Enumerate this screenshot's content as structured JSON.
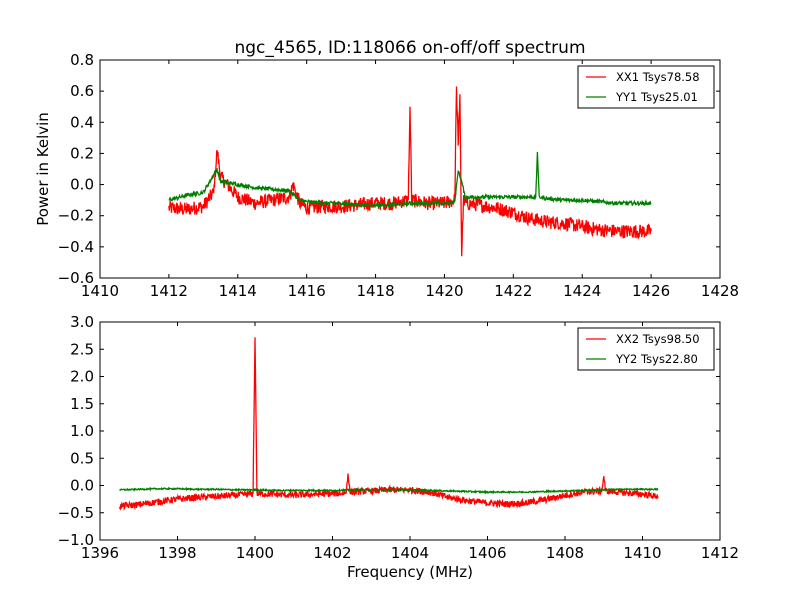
{
  "figure": {
    "title": "ngc_4565, ID:118066 on-off/off spectrum",
    "xlabel": "Frequency (MHz)"
  },
  "chart_data": [
    {
      "type": "line",
      "title": "ngc_4565, ID:118066 on-off/off spectrum",
      "xlabel": "",
      "ylabel": "Power in Kelvin",
      "xlim": [
        1410,
        1428
      ],
      "ylim": [
        -0.6,
        0.8
      ],
      "xticks": [
        1410,
        1412,
        1414,
        1416,
        1418,
        1420,
        1422,
        1424,
        1426,
        1428
      ],
      "yticks": [
        -0.6,
        -0.4,
        -0.2,
        0.0,
        0.2,
        0.4,
        0.6,
        0.8
      ],
      "xtick_labels": [
        "1410",
        "1412",
        "1414",
        "1416",
        "1418",
        "1420",
        "1422",
        "1424",
        "1426",
        "1428"
      ],
      "ytick_labels": [
        "−0.6",
        "−0.4",
        "−0.2",
        "0.0",
        "0.2",
        "0.4",
        "0.6",
        "0.8"
      ],
      "grid": false,
      "legend_position": "top-right",
      "series": [
        {
          "name": "XX1 Tsys78.58",
          "color": "#ff0000",
          "x": [
            1412.0,
            1412.5,
            1413.0,
            1413.3,
            1413.4,
            1413.5,
            1414.0,
            1414.5,
            1415.0,
            1415.5,
            1415.6,
            1415.8,
            1416.0,
            1416.5,
            1417.0,
            1417.5,
            1418.0,
            1418.5,
            1418.95,
            1419.0,
            1419.05,
            1419.5,
            1420.0,
            1420.3,
            1420.35,
            1420.4,
            1420.45,
            1420.5,
            1420.55,
            1420.6,
            1421.0,
            1421.5,
            1422.0,
            1422.5,
            1423.0,
            1423.5,
            1424.0,
            1424.5,
            1425.0,
            1425.5,
            1426.0
          ],
          "y": [
            -0.15,
            -0.16,
            -0.14,
            -0.05,
            0.22,
            0.05,
            -0.08,
            -0.12,
            -0.1,
            -0.08,
            0.0,
            -0.12,
            -0.15,
            -0.14,
            -0.14,
            -0.13,
            -0.12,
            -0.12,
            -0.1,
            0.5,
            -0.1,
            -0.12,
            -0.12,
            -0.1,
            0.63,
            0.25,
            0.58,
            -0.46,
            -0.1,
            -0.12,
            -0.13,
            -0.15,
            -0.18,
            -0.22,
            -0.24,
            -0.25,
            -0.27,
            -0.29,
            -0.3,
            -0.3,
            -0.3
          ]
        },
        {
          "name": "YY1 Tsys25.01",
          "color": "#008000",
          "x": [
            1412.0,
            1412.5,
            1413.0,
            1413.4,
            1413.5,
            1414.0,
            1414.5,
            1415.0,
            1415.5,
            1415.8,
            1416.0,
            1416.5,
            1417.0,
            1417.5,
            1418.0,
            1418.5,
            1419.0,
            1419.5,
            1420.0,
            1420.3,
            1420.4,
            1420.5,
            1420.6,
            1421.0,
            1421.5,
            1422.0,
            1422.5,
            1422.65,
            1422.7,
            1422.75,
            1423.0,
            1423.5,
            1424.0,
            1424.5,
            1425.0,
            1425.5,
            1426.0
          ],
          "y": [
            -0.1,
            -0.07,
            -0.05,
            0.1,
            0.02,
            0.0,
            -0.02,
            -0.03,
            -0.04,
            -0.1,
            -0.11,
            -0.12,
            -0.12,
            -0.13,
            -0.13,
            -0.13,
            -0.12,
            -0.12,
            -0.12,
            -0.11,
            0.09,
            0.02,
            -0.08,
            -0.08,
            -0.08,
            -0.08,
            -0.08,
            -0.08,
            0.21,
            -0.08,
            -0.09,
            -0.1,
            -0.1,
            -0.11,
            -0.12,
            -0.12,
            -0.12
          ]
        }
      ]
    },
    {
      "type": "line",
      "title": "",
      "xlabel": "Frequency (MHz)",
      "ylabel": "",
      "xlim": [
        1396,
        1412
      ],
      "ylim": [
        -1.0,
        3.0
      ],
      "xticks": [
        1396,
        1398,
        1400,
        1402,
        1404,
        1406,
        1408,
        1410,
        1412
      ],
      "yticks": [
        -1.0,
        -0.5,
        0.0,
        0.5,
        1.0,
        1.5,
        2.0,
        2.5,
        3.0
      ],
      "xtick_labels": [
        "1396",
        "1398",
        "1400",
        "1402",
        "1404",
        "1406",
        "1408",
        "1410",
        "1412"
      ],
      "ytick_labels": [
        "−1.0",
        "−0.5",
        "0.0",
        "0.5",
        "1.0",
        "1.5",
        "2.0",
        "2.5",
        "3.0"
      ],
      "grid": false,
      "legend_position": "top-right",
      "series": [
        {
          "name": "XX2 Tsys98.50",
          "color": "#ff0000",
          "x": [
            1396.5,
            1397.0,
            1397.5,
            1398.0,
            1398.5,
            1399.0,
            1399.5,
            1399.95,
            1400.0,
            1400.05,
            1400.5,
            1401.0,
            1401.5,
            1402.0,
            1402.35,
            1402.4,
            1402.45,
            1403.0,
            1403.5,
            1404.0,
            1404.5,
            1405.0,
            1405.5,
            1406.0,
            1406.5,
            1407.0,
            1407.5,
            1408.0,
            1408.5,
            1408.95,
            1409.0,
            1409.05,
            1409.5,
            1410.0,
            1410.4
          ],
          "y": [
            -0.38,
            -0.35,
            -0.3,
            -0.25,
            -0.22,
            -0.2,
            -0.18,
            -0.15,
            2.72,
            -0.15,
            -0.16,
            -0.18,
            -0.16,
            -0.15,
            -0.14,
            0.22,
            -0.12,
            -0.1,
            -0.08,
            -0.08,
            -0.12,
            -0.22,
            -0.28,
            -0.32,
            -0.34,
            -0.32,
            -0.26,
            -0.18,
            -0.12,
            -0.1,
            0.17,
            -0.1,
            -0.13,
            -0.16,
            -0.2
          ]
        },
        {
          "name": "YY2 Tsys22.80",
          "color": "#008000",
          "x": [
            1396.5,
            1397.0,
            1397.5,
            1398.0,
            1398.5,
            1399.0,
            1399.5,
            1400.0,
            1400.5,
            1401.0,
            1401.5,
            1402.0,
            1402.5,
            1403.0,
            1403.5,
            1404.0,
            1404.5,
            1405.0,
            1405.5,
            1406.0,
            1406.5,
            1407.0,
            1407.5,
            1408.0,
            1408.5,
            1409.0,
            1409.5,
            1410.0,
            1410.4
          ],
          "y": [
            -0.08,
            -0.07,
            -0.06,
            -0.06,
            -0.07,
            -0.07,
            -0.08,
            -0.08,
            -0.09,
            -0.09,
            -0.09,
            -0.09,
            -0.08,
            -0.08,
            -0.08,
            -0.08,
            -0.09,
            -0.1,
            -0.11,
            -0.12,
            -0.12,
            -0.12,
            -0.11,
            -0.1,
            -0.09,
            -0.08,
            -0.07,
            -0.07,
            -0.07
          ]
        }
      ]
    }
  ]
}
